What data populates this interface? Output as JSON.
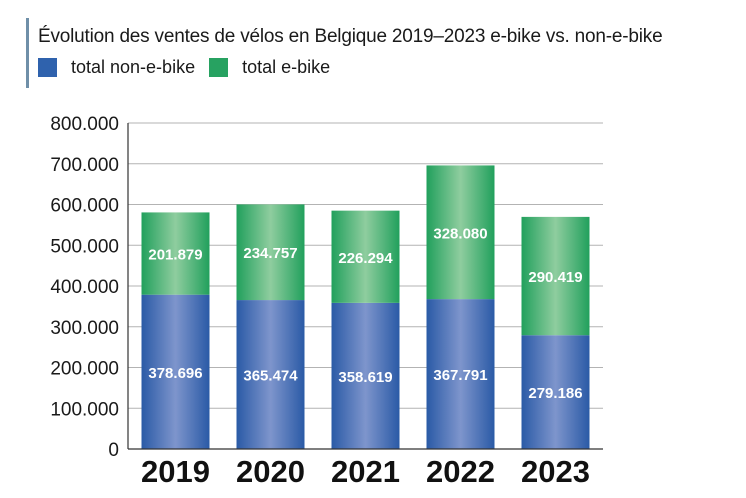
{
  "chart_data": {
    "type": "bar",
    "stacked": true,
    "title": "Évolution des ventes de vélos en Belgique 2019–2023 e-bike vs. non-e-bike",
    "categories": [
      "2019",
      "2020",
      "2021",
      "2022",
      "2023"
    ],
    "series": [
      {
        "name": "total non-e-bike",
        "color": "#2f62ad",
        "values": [
          378696,
          365474,
          358619,
          367791,
          279186
        ],
        "labels": [
          "378.696",
          "365.474",
          "358.619",
          "367.791",
          "279.186"
        ]
      },
      {
        "name": "total e-bike",
        "color": "#27a261",
        "values": [
          201879,
          234757,
          226294,
          328080,
          290419
        ],
        "labels": [
          "201.879",
          "234.757",
          "226.294",
          "328.080",
          "290.419"
        ]
      }
    ],
    "ylim": [
      0,
      800000
    ],
    "yticks": [
      0,
      100000,
      200000,
      300000,
      400000,
      500000,
      600000,
      700000,
      800000
    ],
    "ytick_labels": [
      "0",
      "100.000",
      "200.000",
      "300.000",
      "400.000",
      "500.000",
      "600.000",
      "700.000",
      "800.000"
    ],
    "grid": true,
    "legend_position": "top-left"
  }
}
